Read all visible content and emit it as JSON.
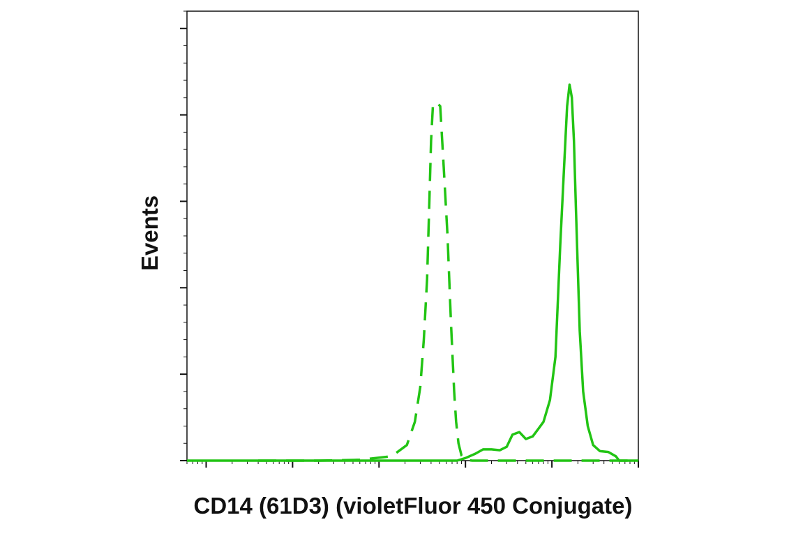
{
  "chart_data": {
    "type": "line",
    "title": "",
    "xlabel": "CD14 (61D3) (violetFluor 450 Conjugate)",
    "ylabel": "Events",
    "x_scale": "log",
    "xlim": [
      0.6,
      100000
    ],
    "ylim": [
      0,
      5.2
    ],
    "y_major_ticks": [
      0,
      1,
      2,
      3,
      4,
      5
    ],
    "grid": false,
    "legend": "none",
    "colors": {
      "series": "#22c414",
      "axis": "#111111"
    },
    "series": [
      {
        "style": "dashed",
        "x": [
          4,
          20,
          60,
          140,
          210,
          260,
          300,
          330,
          360,
          380,
          400,
          420,
          460,
          510,
          560,
          620,
          680,
          740,
          780,
          830,
          900,
          1000,
          1200,
          2000,
          5000,
          20000,
          100000
        ],
        "y": [
          0.0,
          0.0,
          0.01,
          0.05,
          0.18,
          0.45,
          0.85,
          1.4,
          2.1,
          2.9,
          3.7,
          4.1,
          4.15,
          4.1,
          3.4,
          2.6,
          1.6,
          0.8,
          0.45,
          0.2,
          0.06,
          0.01,
          0.0,
          0.0,
          0.0,
          0.0,
          0.0
        ]
      },
      {
        "style": "solid",
        "x": [
          0.6,
          100,
          800,
          1000,
          1300,
          1600,
          2000,
          2500,
          3000,
          3500,
          4200,
          5000,
          6000,
          7000,
          8000,
          9500,
          11000,
          12500,
          14000,
          15000,
          16000,
          17000,
          18000,
          19000,
          21000,
          23000,
          26000,
          30000,
          36000,
          45000,
          55000,
          60000,
          70000,
          100000
        ],
        "y": [
          0.0,
          0.0,
          0.0,
          0.03,
          0.08,
          0.13,
          0.13,
          0.12,
          0.16,
          0.3,
          0.33,
          0.25,
          0.28,
          0.37,
          0.45,
          0.7,
          1.2,
          2.5,
          3.5,
          4.1,
          4.35,
          4.2,
          3.7,
          2.9,
          1.5,
          0.8,
          0.4,
          0.18,
          0.11,
          0.1,
          0.05,
          0.0,
          0.0,
          0.0
        ]
      }
    ]
  }
}
